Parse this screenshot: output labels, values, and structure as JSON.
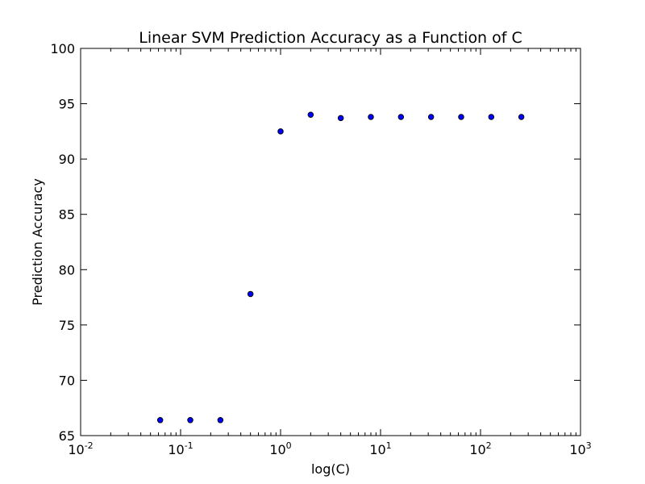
{
  "chart_data": {
    "type": "scatter",
    "title": "Linear SVM Prediction Accuracy as a Function of C",
    "xlabel": "log(C)",
    "ylabel": "Prediction Accuracy",
    "xscale": "log",
    "xlim": [
      0.01,
      1000
    ],
    "ylim": [
      65,
      100
    ],
    "x_ticks": [
      {
        "value": 0.01,
        "base": "10",
        "exp": "-2"
      },
      {
        "value": 0.1,
        "base": "10",
        "exp": "-1"
      },
      {
        "value": 1,
        "base": "10",
        "exp": "0"
      },
      {
        "value": 10,
        "base": "10",
        "exp": "1"
      },
      {
        "value": 100,
        "base": "10",
        "exp": "2"
      },
      {
        "value": 1000,
        "base": "10",
        "exp": "3"
      }
    ],
    "y_ticks": [
      65,
      70,
      75,
      80,
      85,
      90,
      95,
      100
    ],
    "grid": false,
    "marker_color": "#0000ff",
    "points": [
      {
        "x": 0.0625,
        "y": 66.4
      },
      {
        "x": 0.125,
        "y": 66.4
      },
      {
        "x": 0.25,
        "y": 66.4
      },
      {
        "x": 0.5,
        "y": 77.8
      },
      {
        "x": 1,
        "y": 92.5
      },
      {
        "x": 2,
        "y": 94.0
      },
      {
        "x": 4,
        "y": 93.7
      },
      {
        "x": 8,
        "y": 93.8
      },
      {
        "x": 16,
        "y": 93.8
      },
      {
        "x": 32,
        "y": 93.8
      },
      {
        "x": 64,
        "y": 93.8
      },
      {
        "x": 128,
        "y": 93.8
      },
      {
        "x": 256,
        "y": 93.8
      }
    ]
  }
}
